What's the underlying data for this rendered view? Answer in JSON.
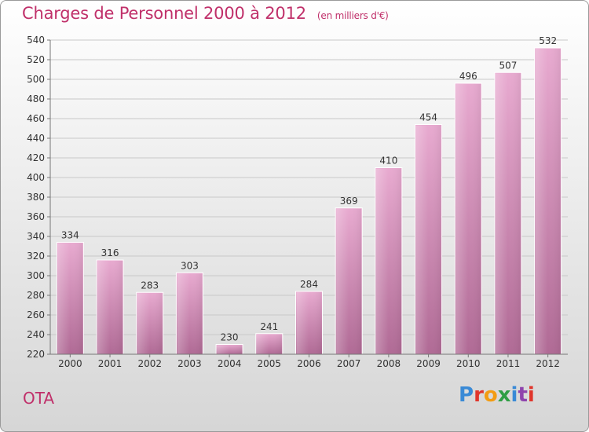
{
  "header": {
    "title": "Charges de Personnel 2000 à 2012",
    "subtitle": "(en milliers d'€)"
  },
  "commune": "OTA",
  "logo": {
    "text": "Proxiti"
  },
  "colors": {
    "title": "#c0306a",
    "bar_top": "#e8a8cf",
    "bar_bottom": "#b26a96"
  },
  "chart_data": {
    "type": "bar",
    "title": "Charges de Personnel 2000 à 2012",
    "subtitle": "(en milliers d'€)",
    "categories": [
      "2000",
      "2001",
      "2002",
      "2003",
      "2004",
      "2005",
      "2006",
      "2007",
      "2008",
      "2009",
      "2010",
      "2011",
      "2012"
    ],
    "values": [
      334,
      316,
      283,
      303,
      230,
      241,
      284,
      369,
      410,
      454,
      496,
      507,
      532
    ],
    "ylim": [
      220,
      540
    ],
    "yticks": [
      220,
      240,
      260,
      280,
      300,
      320,
      340,
      360,
      380,
      400,
      420,
      440,
      460,
      480,
      500,
      520,
      540
    ],
    "grid": true,
    "xlabel": "",
    "ylabel": ""
  }
}
